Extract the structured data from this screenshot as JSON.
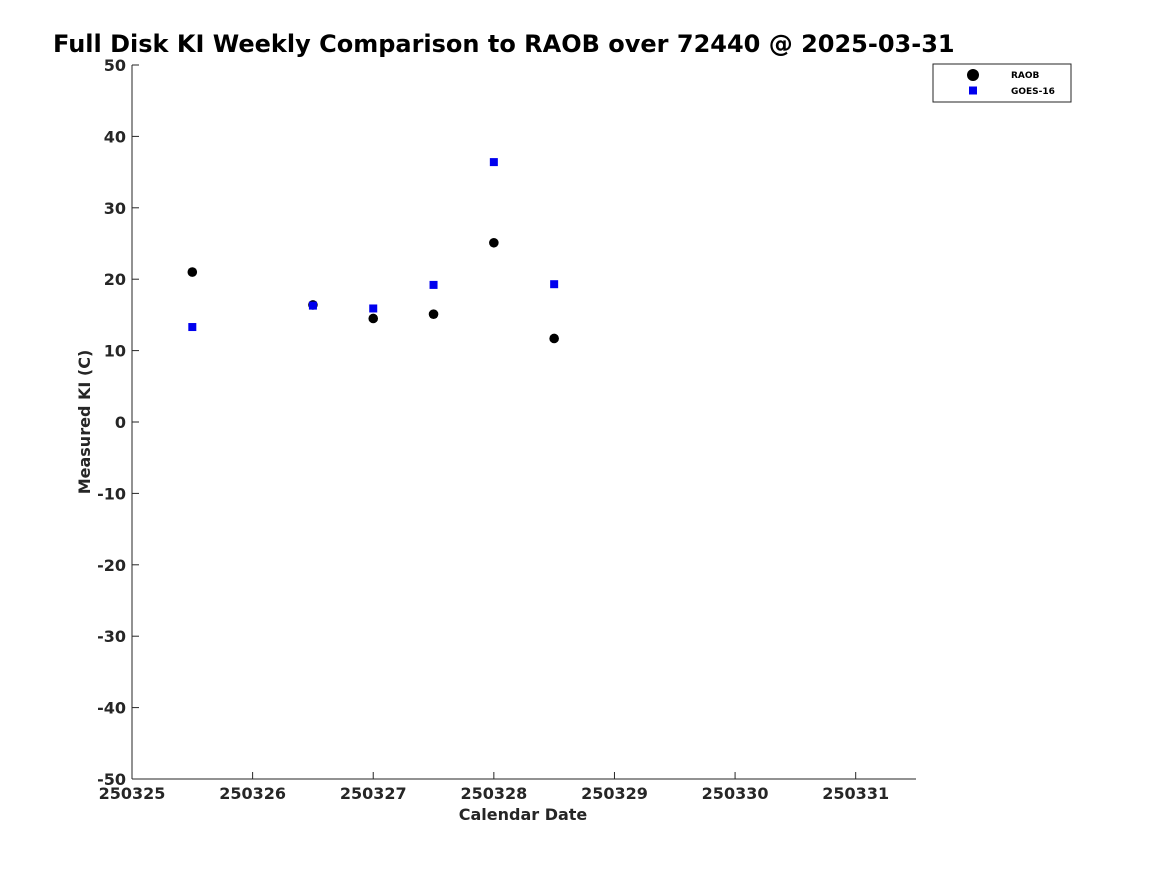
{
  "chart_data": {
    "type": "scatter",
    "title": "Full Disk KI Weekly Comparison to RAOB over 72440 @ 2025-03-31",
    "xlabel": "Calendar Date",
    "ylabel": "Measured KI (C)",
    "xlim": [
      0,
      6.5
    ],
    "ylim": [
      -50,
      50
    ],
    "x_ticks": [
      0,
      1,
      2,
      3,
      4,
      5,
      6
    ],
    "x_tick_labels": [
      "250325",
      "250326",
      "250327",
      "250328",
      "250329",
      "250330",
      "250331"
    ],
    "y_ticks": [
      -50,
      -40,
      -30,
      -20,
      -10,
      0,
      10,
      20,
      30,
      40,
      50
    ],
    "y_tick_labels": [
      "-50",
      "-40",
      "-30",
      "-20",
      "-10",
      "0",
      "10",
      "20",
      "30",
      "40",
      "50"
    ],
    "grid": false,
    "legend_position": "top-right",
    "series": [
      {
        "name": "RAOB",
        "marker": "circle",
        "color": "#000000",
        "x": [
          0.5,
          1.5,
          2.0,
          2.5,
          3.0,
          3.5
        ],
        "y": [
          21.0,
          16.4,
          14.5,
          15.1,
          25.1,
          11.7
        ]
      },
      {
        "name": "GOES-16",
        "marker": "square",
        "color": "#0000ee",
        "x": [
          0.5,
          1.5,
          2.0,
          2.5,
          3.0,
          3.5
        ],
        "y": [
          13.3,
          16.3,
          15.9,
          19.2,
          36.4,
          19.3
        ]
      }
    ]
  }
}
